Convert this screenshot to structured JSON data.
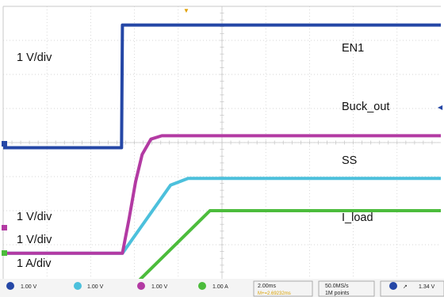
{
  "chart_data": {
    "type": "line",
    "title": "",
    "xlabel": "",
    "ylabel": "",
    "x_unit": "ms",
    "xlim": [
      -5.45,
      14.55
    ],
    "ylim": [
      -4.0,
      4.0
    ],
    "grid": true,
    "annotations": {
      "scale_1": "1 V/div",
      "scale_2": "1 V/div",
      "scale_3": "1 V/div",
      "scale_4": "1 A/div"
    },
    "series": [
      {
        "name": "EN1",
        "color": "#2547a6",
        "offset_div": -0.15,
        "x": [
          -5.45,
          -0.04,
          0.0,
          14.55
        ],
        "y": [
          0,
          0,
          3.6,
          3.6
        ]
      },
      {
        "name": "Buck_out",
        "color": "#b33aa3",
        "offset_div": -3.25,
        "x": [
          -5.45,
          0.0,
          0.3,
          0.6,
          0.9,
          1.3,
          1.8,
          14.55
        ],
        "y": [
          0,
          0,
          1.0,
          2.1,
          2.9,
          3.35,
          3.45,
          3.45
        ]
      },
      {
        "name": "SS",
        "color": "#4cc0dc",
        "offset_div": -3.25,
        "x": [
          -5.45,
          0.0,
          2.2,
          3.0,
          14.55
        ],
        "y": [
          0,
          0,
          2.0,
          2.2,
          2.2
        ]
      },
      {
        "name": "I_load",
        "color": "#4cbc3c",
        "offset_div": -4.15,
        "x": [
          -5.45,
          0.6,
          4.0,
          14.55
        ],
        "y": [
          0,
          0,
          2.15,
          2.15
        ]
      }
    ]
  },
  "labels": {
    "scale_1": "1 V/div",
    "scale_2": "1 V/div",
    "scale_3": "1 V/div",
    "scale_4": "1 A/div",
    "series_en1": "EN1",
    "series_buck": "Buck_out",
    "series_ss": "SS",
    "series_iload": "I_load"
  },
  "status_bar": {
    "ch1_scale": "1.00 V",
    "ch2_scale": "1.00 V",
    "ch3_scale": "1.00 V",
    "ch4_scale": "1.00 A",
    "time_scale": "2.00ms",
    "delay": "M+=2.69232ms",
    "sample_rate": "50.0MS/s",
    "record_length": "1M points",
    "trigger_level": "1.34 V"
  }
}
